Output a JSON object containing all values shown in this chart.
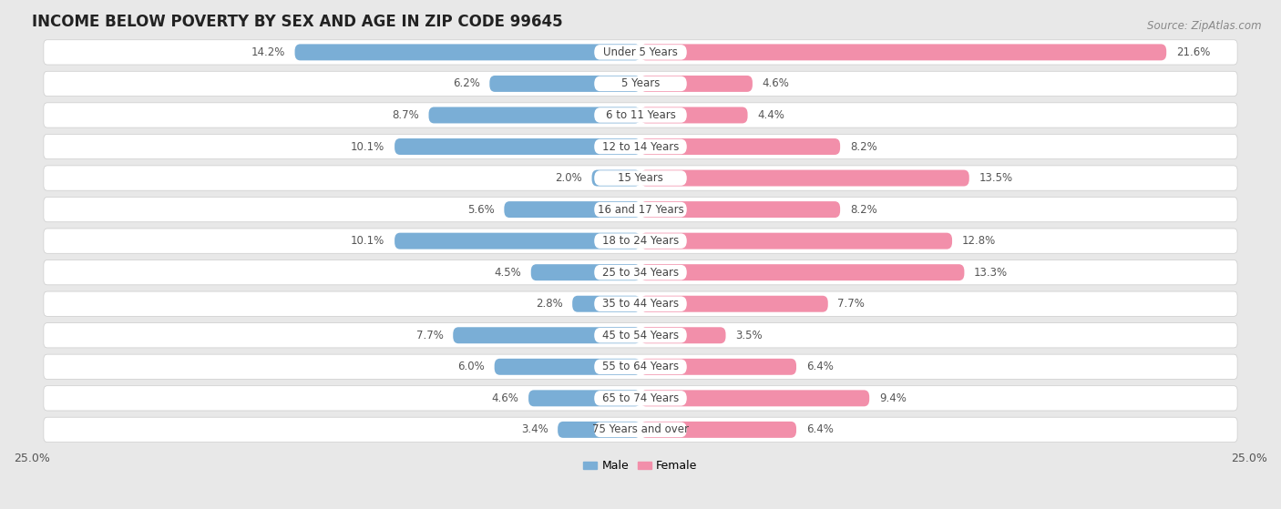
{
  "title": "INCOME BELOW POVERTY BY SEX AND AGE IN ZIP CODE 99645",
  "source": "Source: ZipAtlas.com",
  "categories": [
    "Under 5 Years",
    "5 Years",
    "6 to 11 Years",
    "12 to 14 Years",
    "15 Years",
    "16 and 17 Years",
    "18 to 24 Years",
    "25 to 34 Years",
    "35 to 44 Years",
    "45 to 54 Years",
    "55 to 64 Years",
    "65 to 74 Years",
    "75 Years and over"
  ],
  "male_values": [
    14.2,
    6.2,
    8.7,
    10.1,
    2.0,
    5.6,
    10.1,
    4.5,
    2.8,
    7.7,
    6.0,
    4.6,
    3.4
  ],
  "female_values": [
    21.6,
    4.6,
    4.4,
    8.2,
    13.5,
    8.2,
    12.8,
    13.3,
    7.7,
    3.5,
    6.4,
    9.4,
    6.4
  ],
  "male_color": "#7aaed6",
  "female_color": "#f28faa",
  "male_label": "Male",
  "female_label": "Female",
  "xlim": 25.0,
  "background_color": "#e8e8e8",
  "row_bg_color": "#ffffff",
  "title_fontsize": 12,
  "label_fontsize": 8.5,
  "tick_fontsize": 9,
  "source_fontsize": 8.5,
  "bar_height": 0.52,
  "row_padding": 0.12
}
